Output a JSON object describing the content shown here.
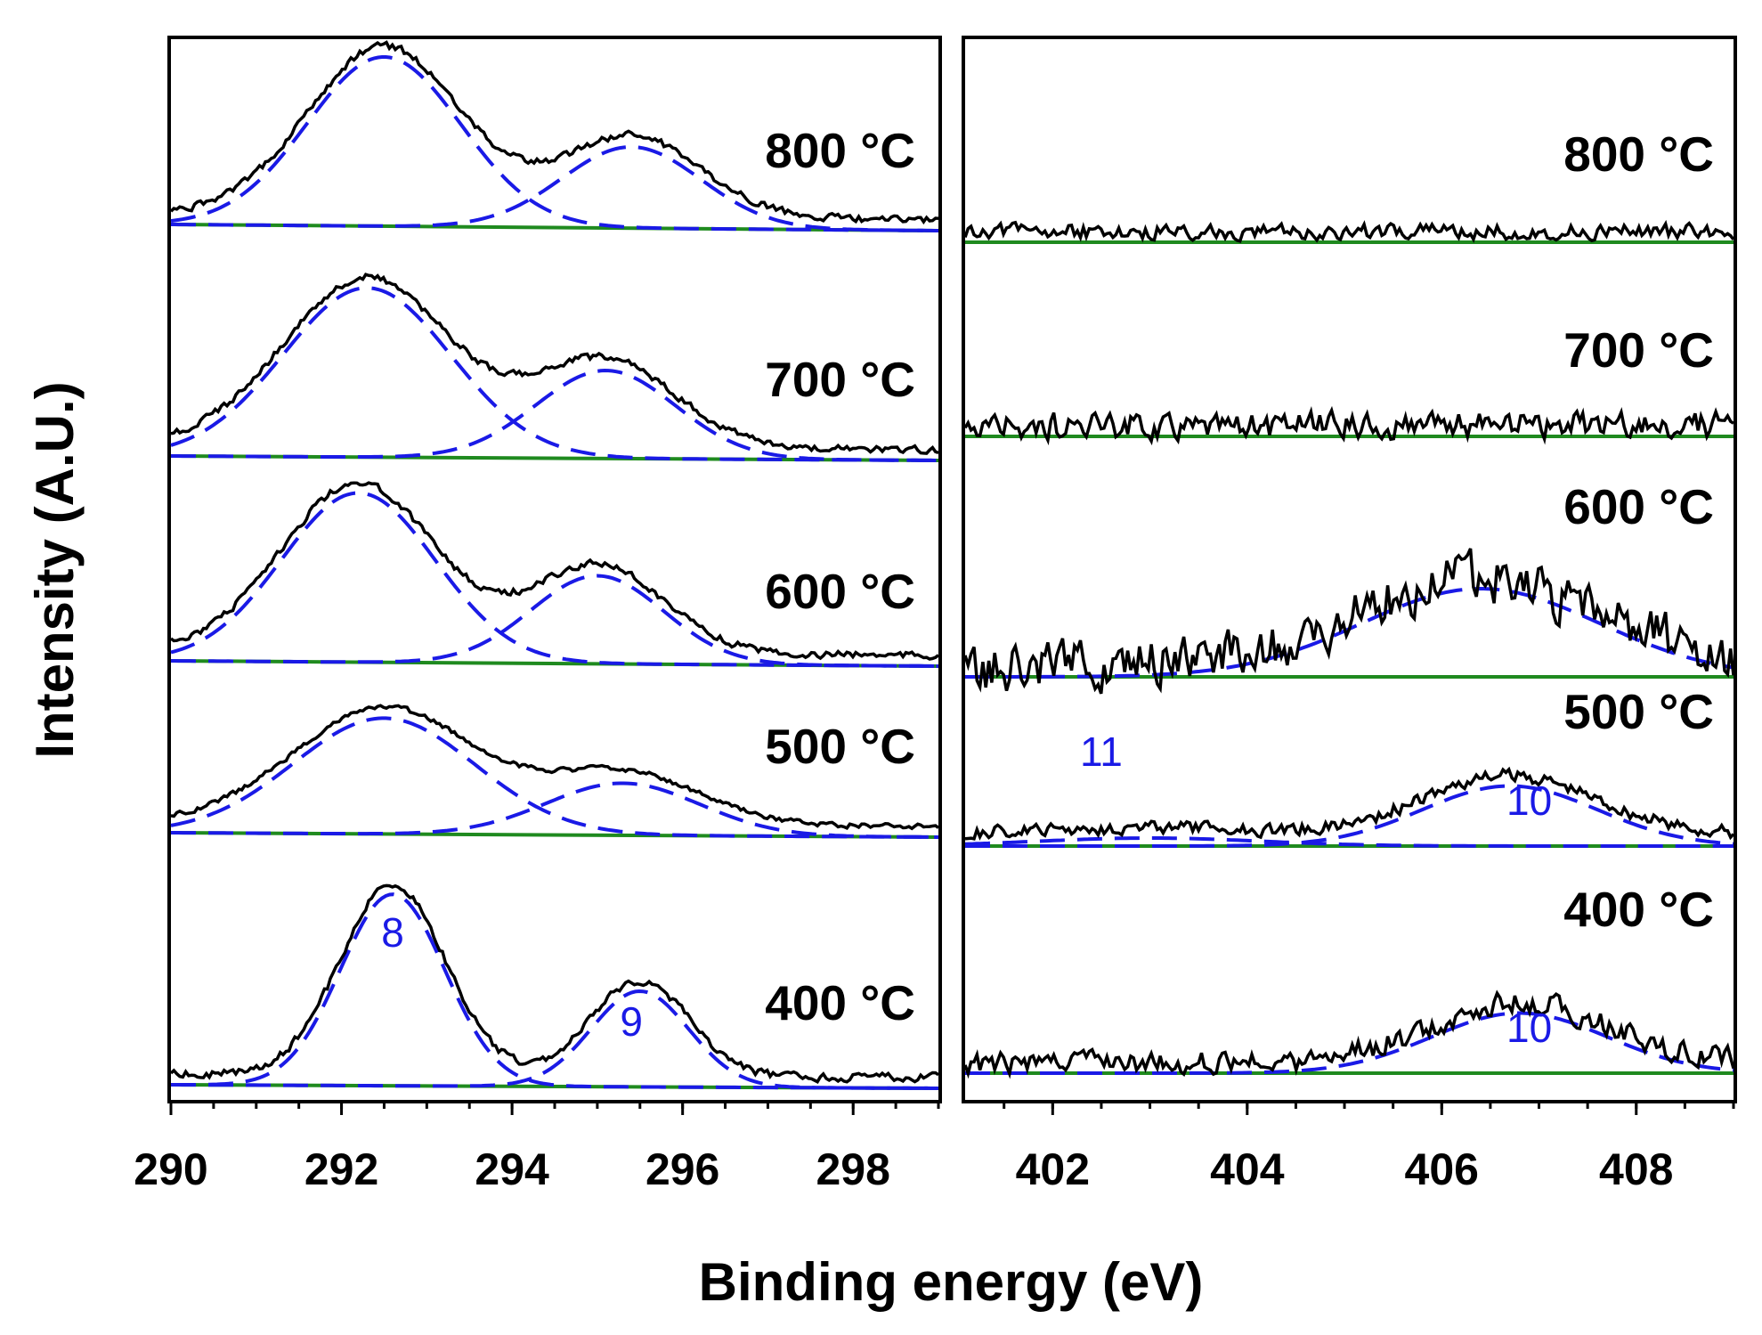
{
  "chart_data": {
    "type": "line",
    "xlabel": "Binding energy (eV)",
    "ylabel": "Intensity (A.U.)",
    "grid": false,
    "colors": {
      "spectrum": "#000000",
      "fit": "#1a1ae6",
      "baseline": "#1f8a1f",
      "peak_label": "#1a1ae6"
    },
    "panels": [
      {
        "name": "left",
        "xlim": [
          290,
          299
        ],
        "tick_labels": [
          "290",
          "292",
          "294",
          "296",
          "298"
        ],
        "tick_values": [
          290,
          292,
          294,
          296,
          298
        ],
        "spectra": [
          {
            "temperature": "800 °C",
            "peaks": [
              {
                "center": 292.5,
                "height": 1.0,
                "width": 1.1
              },
              {
                "center": 295.4,
                "height": 0.48,
                "width": 1.0
              }
            ],
            "baseline_drop": 0.07,
            "peak_labels": []
          },
          {
            "temperature": "700 °C",
            "peaks": [
              {
                "center": 292.3,
                "height": 1.0,
                "width": 1.2
              },
              {
                "center": 295.1,
                "height": 0.52,
                "width": 1.0
              }
            ],
            "baseline_drop": 0.05,
            "peak_labels": []
          },
          {
            "temperature": "600 °C",
            "peaks": [
              {
                "center": 292.2,
                "height": 1.0,
                "width": 1.1
              },
              {
                "center": 295.0,
                "height": 0.52,
                "width": 0.95
              }
            ],
            "baseline_drop": 0.06,
            "peak_labels": []
          },
          {
            "temperature": "500 °C",
            "peaks": [
              {
                "center": 292.5,
                "height": 1.0,
                "width": 1.3
              },
              {
                "center": 295.3,
                "height": 0.45,
                "width": 1.1
              }
            ],
            "baseline_drop": 0.05,
            "peak_labels": []
          },
          {
            "temperature": "400 °C",
            "peaks": [
              {
                "center": 292.6,
                "height": 1.0,
                "width": 0.75
              },
              {
                "center": 295.5,
                "height": 0.5,
                "width": 0.7
              }
            ],
            "baseline_drop": 0.04,
            "peak_labels": [
              {
                "text": "8",
                "x": 292.6
              },
              {
                "text": "9",
                "x": 295.4
              }
            ]
          }
        ]
      },
      {
        "name": "right",
        "xlim": [
          401.1,
          409.0
        ],
        "tick_labels": [
          "402",
          "404",
          "406",
          "408"
        ],
        "tick_values": [
          402,
          404,
          406,
          408
        ],
        "spectra": [
          {
            "temperature": "800 °C",
            "peaks": [],
            "baseline_drop": 0.0,
            "noise": 0.08,
            "peak_labels": []
          },
          {
            "temperature": "700 °C",
            "peaks": [],
            "baseline_drop": 0.0,
            "noise": 0.14,
            "peak_labels": []
          },
          {
            "temperature": "600 °C",
            "peaks": [
              {
                "center": 406.4,
                "height": 0.55,
                "width": 1.5
              }
            ],
            "baseline_drop": 0.0,
            "noise": 0.22,
            "peak_labels": []
          },
          {
            "temperature": "500 °C",
            "peaks": [
              {
                "center": 406.7,
                "height": 0.45,
                "width": 1.1
              },
              {
                "center": 403.0,
                "height": 0.06,
                "width": 1.4
              }
            ],
            "baseline_drop": 0.0,
            "noise": 0.07,
            "peak_labels": [
              {
                "text": "11",
                "x": 402.5
              },
              {
                "text": "10",
                "x": 406.9
              }
            ]
          },
          {
            "temperature": "400 °C",
            "peaks": [
              {
                "center": 406.8,
                "height": 0.45,
                "width": 1.1
              }
            ],
            "baseline_drop": 0.0,
            "noise": 0.12,
            "peak_labels": [
              {
                "text": "10",
                "x": 406.9
              }
            ]
          }
        ]
      }
    ]
  }
}
